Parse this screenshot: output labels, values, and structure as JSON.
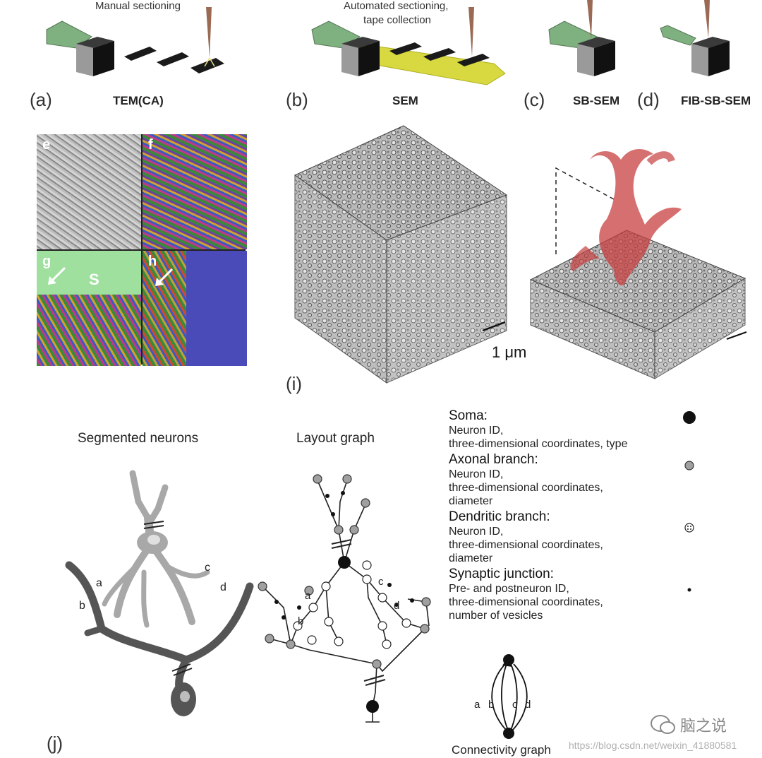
{
  "top_panels": {
    "a": {
      "title": "Manual sectioning",
      "letter": "(a)",
      "method": "TEM(CA)"
    },
    "b": {
      "title_line1": "Automated sectioning,",
      "title_line2": "tape collection",
      "letter": "(b)",
      "method": "SEM"
    },
    "c": {
      "letter": "(c)",
      "method": "SB-SEM"
    },
    "d": {
      "letter": "(d)",
      "method": "FIB-SB-SEM"
    }
  },
  "em_tiles": {
    "e": "e",
    "f": "f",
    "g": "g",
    "h": "h",
    "s": "S"
  },
  "volume": {
    "scale_bar": "1 μm",
    "letter": "(i)"
  },
  "neurons": {
    "title": "Segmented neurons",
    "labels": {
      "a": "a",
      "b": "b",
      "c": "c",
      "d": "d"
    }
  },
  "layout_graph": {
    "title": "Layout graph",
    "labels": {
      "a": "a",
      "b": "b",
      "c": "c",
      "d": "d"
    }
  },
  "legend": {
    "soma": {
      "title": "Soma:",
      "line1": "Neuron ID,",
      "line2": "three-dimensional coordinates, type"
    },
    "axonal": {
      "title": "Axonal branch:",
      "line1": "Neuron ID,",
      "line2": "three-dimensional coordinates,",
      "line3": "diameter"
    },
    "dendritic": {
      "title": "Dendritic branch:",
      "line1": "Neuron ID,",
      "line2": "three-dimensional  coordinates,",
      "line3": "diameter"
    },
    "synaptic": {
      "title": "Synaptic junction:",
      "line1": "Pre- and postneuron ID,",
      "line2": "three-dimensional coordinates,",
      "line3": "number of vesicles"
    }
  },
  "connectivity": {
    "title": "Connectivity graph",
    "labels": {
      "a": "a",
      "b": "b",
      "c": "c",
      "d": "d"
    }
  },
  "panel_j": "(j)",
  "watermark": {
    "brand": "脑之说",
    "url": "https://blog.csdn.net/weixin_41880581"
  },
  "colors": {
    "knife_green": "#7fb07f",
    "tape_yellow": "#d8d840",
    "probe_brown": "#9a6a55",
    "soma_red": "#c84040",
    "dendrite_dark": "#555555",
    "dendrite_light": "#a8a8a8"
  }
}
